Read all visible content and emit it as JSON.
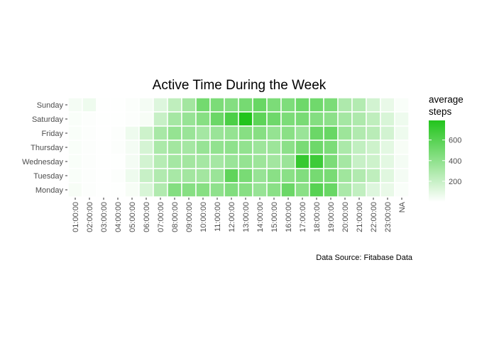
{
  "chart_data": {
    "type": "heatmap",
    "title": "Active Time During the Week",
    "caption": "Data Source: Fitabase Data",
    "xlabel": "",
    "ylabel": "",
    "x_categories": [
      "01:00:00",
      "02:00:00",
      "03:00:00",
      "04:00:00",
      "05:00:00",
      "06:00:00",
      "07:00:00",
      "08:00:00",
      "09:00:00",
      "10:00:00",
      "11:00:00",
      "12:00:00",
      "13:00:00",
      "14:00:00",
      "15:00:00",
      "16:00:00",
      "17:00:00",
      "18:00:00",
      "19:00:00",
      "20:00:00",
      "21:00:00",
      "22:00:00",
      "23:00:00",
      "NA"
    ],
    "y_categories": [
      "Sunday",
      "Saturday",
      "Friday",
      "Thursday",
      "Wednesday",
      "Tuesday",
      "Monday"
    ],
    "legend": {
      "title_lines": [
        "average",
        "steps"
      ],
      "ticks": [
        200,
        400,
        600
      ],
      "range": [
        0,
        790
      ],
      "low_color": "#ffffff",
      "high_color": "#22c41c"
    },
    "values": [
      [
        40,
        60,
        5,
        5,
        15,
        40,
        120,
        230,
        330,
        500,
        470,
        440,
        490,
        540,
        470,
        460,
        520,
        510,
        470,
        290,
        270,
        160,
        80,
        20
      ],
      [
        20,
        10,
        5,
        5,
        10,
        30,
        200,
        320,
        370,
        430,
        530,
        640,
        790,
        580,
        520,
        470,
        480,
        440,
        410,
        320,
        290,
        230,
        140,
        60
      ],
      [
        20,
        10,
        5,
        10,
        60,
        180,
        310,
        380,
        360,
        320,
        360,
        380,
        430,
        430,
        380,
        420,
        360,
        530,
        540,
        350,
        280,
        250,
        160,
        60
      ],
      [
        20,
        10,
        5,
        10,
        40,
        150,
        300,
        330,
        320,
        370,
        390,
        400,
        390,
        350,
        350,
        410,
        480,
        520,
        470,
        300,
        220,
        180,
        100,
        30
      ],
      [
        20,
        10,
        5,
        5,
        40,
        160,
        260,
        320,
        330,
        320,
        320,
        360,
        380,
        350,
        330,
        360,
        720,
        690,
        470,
        320,
        200,
        180,
        100,
        40
      ],
      [
        20,
        10,
        5,
        10,
        60,
        200,
        280,
        310,
        330,
        330,
        360,
        570,
        480,
        370,
        420,
        420,
        450,
        490,
        480,
        340,
        280,
        230,
        110,
        40
      ],
      [
        30,
        10,
        5,
        5,
        30,
        140,
        280,
        440,
        430,
        430,
        400,
        450,
        430,
        370,
        420,
        530,
        420,
        600,
        540,
        300,
        220,
        120,
        80,
        20
      ]
    ]
  }
}
